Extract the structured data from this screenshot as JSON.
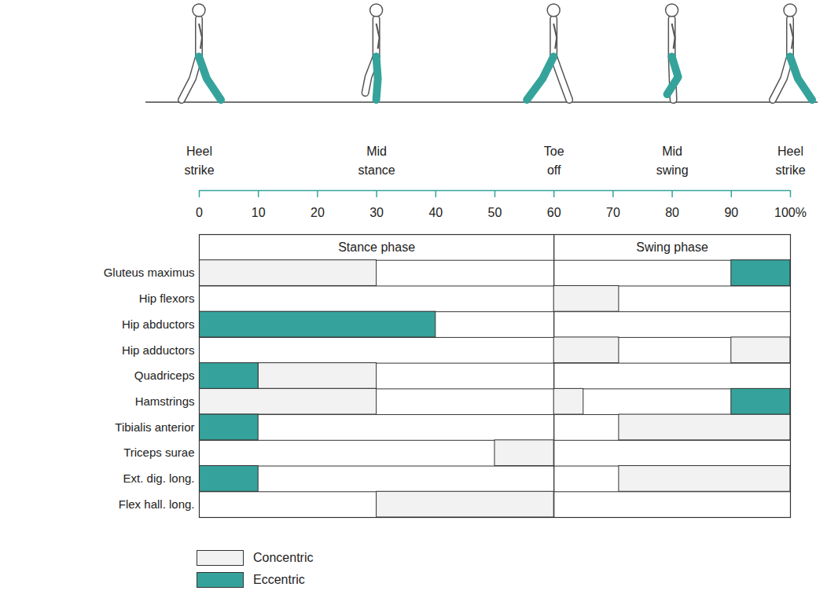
{
  "chart_data": {
    "type": "timeline",
    "orientation": "horizontal",
    "categories": [
      "Gluteus maximus",
      "Hip flexors",
      "Hip abductors",
      "Hip adductors",
      "Quadriceps",
      "Hamstrings",
      "Tibialis anterior",
      "Triceps surae",
      "Ext. dig. long.",
      "Flex hall. long."
    ],
    "xlim": [
      0,
      100
    ],
    "xticks": [
      0,
      10,
      20,
      30,
      40,
      50,
      60,
      70,
      80,
      90,
      {
        "value": 100,
        "label": "100%"
      }
    ],
    "events": [
      {
        "value": 0,
        "label": "Heel strike"
      },
      {
        "value": 30,
        "label": "Mid stance"
      },
      {
        "value": 60,
        "label": "Toe off"
      },
      {
        "value": 80,
        "label": "Mid swing"
      },
      {
        "value": 100,
        "label": "Heel strike"
      }
    ],
    "phases": [
      {
        "name": "Stance phase",
        "start": 0,
        "end": 60
      },
      {
        "name": "Swing phase",
        "start": 60,
        "end": 100
      }
    ],
    "series": [
      {
        "name": "Concentric",
        "color": "#f2f2f2",
        "values": [
          {
            "category": "Gluteus maximus",
            "start": 0,
            "end": 30
          },
          {
            "category": "Hip flexors",
            "start": 60,
            "end": 71
          },
          {
            "category": "Hip adductors",
            "start": 60,
            "end": 71
          },
          {
            "category": "Hip adductors",
            "start": 90,
            "end": 100
          },
          {
            "category": "Quadriceps",
            "start": 10,
            "end": 30
          },
          {
            "category": "Hamstrings",
            "start": 0,
            "end": 30
          },
          {
            "category": "Hamstrings",
            "start": 60,
            "end": 65
          },
          {
            "category": "Tibialis anterior",
            "start": 71,
            "end": 100
          },
          {
            "category": "Triceps surae",
            "start": 50,
            "end": 60
          },
          {
            "category": "Ext. dig. long.",
            "start": 71,
            "end": 100
          },
          {
            "category": "Flex hall. long.",
            "start": 30,
            "end": 60
          }
        ]
      },
      {
        "name": "Eccentric",
        "color": "#35a39b",
        "values": [
          {
            "category": "Gluteus maximus",
            "start": 90,
            "end": 100
          },
          {
            "category": "Hip abductors",
            "start": 0,
            "end": 40
          },
          {
            "category": "Quadriceps",
            "start": 0,
            "end": 10
          },
          {
            "category": "Hamstrings",
            "start": 90,
            "end": 100
          },
          {
            "category": "Tibialis anterior",
            "start": 0,
            "end": 10
          },
          {
            "category": "Ext. dig. long.",
            "start": 0,
            "end": 10
          }
        ]
      }
    ],
    "legend": "bottom-left"
  }
}
